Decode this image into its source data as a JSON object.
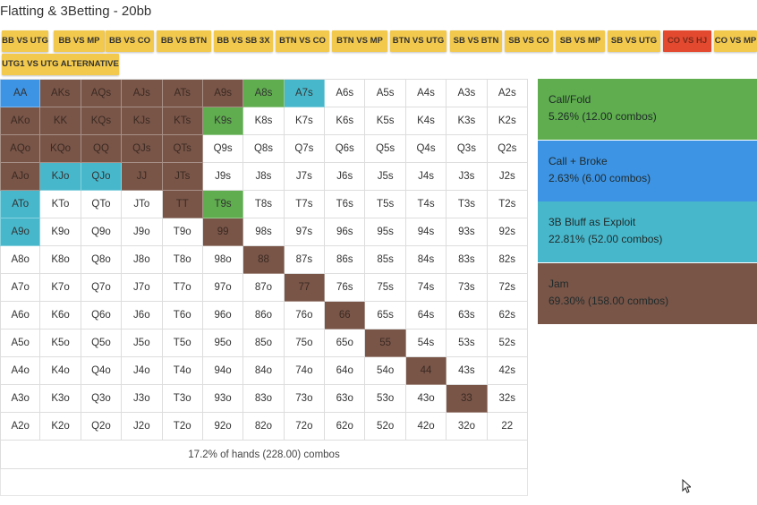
{
  "title": "Flatting & 3Betting - 20bb",
  "tabs": [
    "BB VS UTG",
    "BB VS MP",
    "BB VS CO",
    "BB VS BTN",
    "BB VS SB 3X",
    "BTN VS CO",
    "BTN VS MP",
    "BTN VS UTG",
    "SB VS BTN",
    "SB VS CO",
    "SB VS MP",
    "SB VS UTG",
    "CO VS HJ",
    "CO VS MP",
    "UTG1 VS UTG ALTERNATIVE"
  ],
  "active_tab": "CO VS HJ",
  "colors": {
    "call_fold": "#5fad4e",
    "call_broke": "#3d94e5",
    "bluff": "#47b8cc",
    "jam": "#795548",
    "none": "#ffffff",
    "tab": "#f2c94c",
    "tab_active": "#e2492f"
  },
  "grid": {
    "rows": [
      [
        "AA",
        "AKs",
        "AQs",
        "AJs",
        "ATs",
        "A9s",
        "A8s",
        "A7s",
        "A6s",
        "A5s",
        "A4s",
        "A3s",
        "A2s"
      ],
      [
        "AKo",
        "KK",
        "KQs",
        "KJs",
        "KTs",
        "K9s",
        "K8s",
        "K7s",
        "K6s",
        "K5s",
        "K4s",
        "K3s",
        "K2s"
      ],
      [
        "AQo",
        "KQo",
        "QQ",
        "QJs",
        "QTs",
        "Q9s",
        "Q8s",
        "Q7s",
        "Q6s",
        "Q5s",
        "Q4s",
        "Q3s",
        "Q2s"
      ],
      [
        "AJo",
        "KJo",
        "QJo",
        "JJ",
        "JTs",
        "J9s",
        "J8s",
        "J7s",
        "J6s",
        "J5s",
        "J4s",
        "J3s",
        "J2s"
      ],
      [
        "ATo",
        "KTo",
        "QTo",
        "JTo",
        "TT",
        "T9s",
        "T8s",
        "T7s",
        "T6s",
        "T5s",
        "T4s",
        "T3s",
        "T2s"
      ],
      [
        "A9o",
        "K9o",
        "Q9o",
        "J9o",
        "T9o",
        "99",
        "98s",
        "97s",
        "96s",
        "95s",
        "94s",
        "93s",
        "92s"
      ],
      [
        "A8o",
        "K8o",
        "Q8o",
        "J8o",
        "T8o",
        "98o",
        "88",
        "87s",
        "86s",
        "85s",
        "84s",
        "83s",
        "82s"
      ],
      [
        "A7o",
        "K7o",
        "Q7o",
        "J7o",
        "T7o",
        "97o",
        "87o",
        "77",
        "76s",
        "75s",
        "74s",
        "73s",
        "72s"
      ],
      [
        "A6o",
        "K6o",
        "Q6o",
        "J6o",
        "T6o",
        "96o",
        "86o",
        "76o",
        "66",
        "65s",
        "64s",
        "63s",
        "62s"
      ],
      [
        "A5o",
        "K5o",
        "Q5o",
        "J5o",
        "T5o",
        "95o",
        "85o",
        "75o",
        "65o",
        "55",
        "54s",
        "53s",
        "52s"
      ],
      [
        "A4o",
        "K4o",
        "Q4o",
        "J4o",
        "T4o",
        "94o",
        "84o",
        "74o",
        "64o",
        "54o",
        "44",
        "43s",
        "42s"
      ],
      [
        "A3o",
        "K3o",
        "Q3o",
        "J3o",
        "T3o",
        "93o",
        "83o",
        "73o",
        "63o",
        "53o",
        "43o",
        "33",
        "32s"
      ],
      [
        "A2o",
        "K2o",
        "Q2o",
        "J2o",
        "T2o",
        "92o",
        "82o",
        "72o",
        "62o",
        "52o",
        "42o",
        "32o",
        "22"
      ]
    ],
    "actions": {
      "AA": "call_broke",
      "AKs": "jam",
      "AQs": "jam",
      "AJs": "jam",
      "ATs": "jam",
      "A9s": "jam",
      "A8s": "call_fold",
      "A7s": "bluff",
      "AKo": "jam",
      "KK": "jam",
      "KQs": "jam",
      "KJs": "jam",
      "KTs": "jam",
      "K9s": "call_fold",
      "AQo": "jam",
      "KQo": "jam",
      "QQ": "jam",
      "QJs": "jam",
      "QTs": "jam",
      "AJo": "jam",
      "KJo": "bluff",
      "QJo": "bluff",
      "JJ": "jam",
      "JTs": "jam",
      "ATo": "bluff",
      "TT": "jam",
      "T9s": "call_fold",
      "A9o": "bluff",
      "99": "jam",
      "88": "jam",
      "77": "jam",
      "66": "jam",
      "55": "jam",
      "44": "jam",
      "33": "jam"
    }
  },
  "summary": "17.2% of hands (228.00) combos",
  "legend": [
    {
      "key": "call_fold",
      "name": "Call/Fold",
      "detail": "5.26% (12.00 combos)"
    },
    {
      "key": "call_broke",
      "name": "Call + Broke",
      "detail": "2.63% (6.00 combos)"
    },
    {
      "key": "bluff",
      "name": "3B Bluff as Exploit",
      "detail": "22.81% (52.00 combos)"
    },
    {
      "key": "jam",
      "name": "Jam",
      "detail": "69.30% (158.00 combos)"
    }
  ]
}
